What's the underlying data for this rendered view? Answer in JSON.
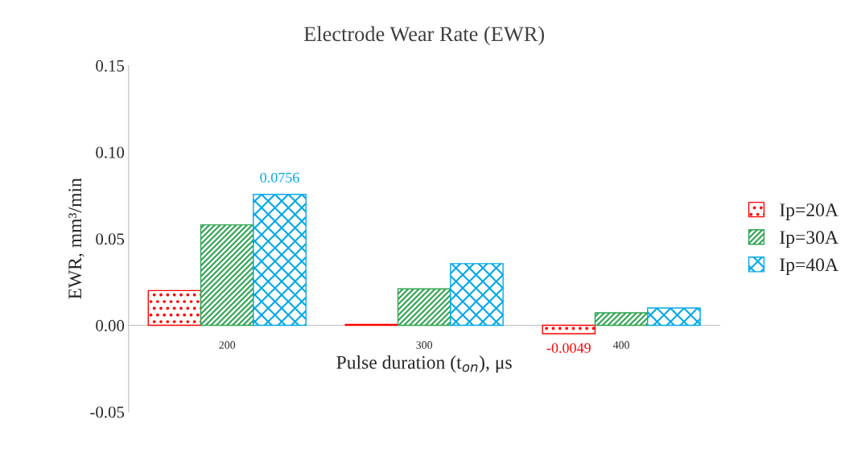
{
  "chart_data": {
    "type": "bar",
    "title": "Electrode Wear Rate (EWR)",
    "xlabel": "Pulse duration (t$_{on}$), μs",
    "ylabel": "EWR, mm³/min",
    "categories": [
      "200",
      "300",
      "400"
    ],
    "series": [
      {
        "name": "Ip=20A",
        "color": "#ff0000",
        "values": [
          0.02,
          0.0005,
          -0.0049
        ],
        "value_labels": [
          null,
          null,
          "-0.0049"
        ]
      },
      {
        "name": "Ip=30A",
        "color": "#2ea44f",
        "values": [
          0.058,
          0.021,
          0.0072
        ],
        "value_labels": [
          null,
          null,
          null
        ]
      },
      {
        "name": "Ip=40A",
        "color": "#00a8e8",
        "values": [
          0.0756,
          0.0356,
          0.01
        ],
        "value_labels": [
          "0.0756",
          null,
          null
        ]
      }
    ],
    "ylim": [
      -0.05,
      0.15
    ],
    "yticks": [
      {
        "value": -0.05,
        "label": "-0.05"
      },
      {
        "value": 0,
        "label": "0.00"
      },
      {
        "value": 0.05,
        "label": "0.05"
      },
      {
        "value": 0.1,
        "label": "0.10"
      },
      {
        "value": 0.15,
        "label": "0.15"
      }
    ],
    "grid": false,
    "legend": "right"
  }
}
